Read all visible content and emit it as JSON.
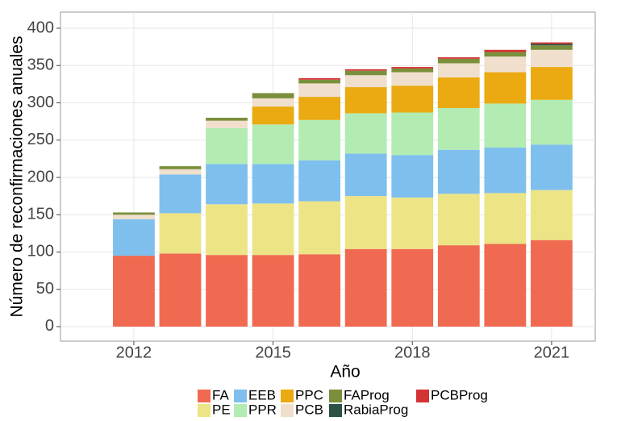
{
  "chart_data": {
    "type": "bar",
    "stacked": true,
    "x_label": "Año",
    "y_label": "Número de reconfirmaciones anuales",
    "x": [
      2012,
      2013,
      2014,
      2015,
      2016,
      2017,
      2018,
      2019,
      2020,
      2021
    ],
    "xlim": [
      2010.42,
      2021.94
    ],
    "xticks": [
      2012,
      2015,
      2018,
      2021
    ],
    "ylim": [
      -19.5,
      421.6
    ],
    "yticks": [
      0,
      50,
      100,
      150,
      200,
      250,
      300,
      350,
      400
    ],
    "grid": true,
    "legend": "bottom",
    "series": [
      {
        "name": "FA",
        "color": "#ef6a50",
        "values": [
          95,
          98,
          96,
          96,
          97,
          104,
          104,
          109,
          111,
          116
        ]
      },
      {
        "name": "PE",
        "color": "#ede485",
        "values": [
          0,
          54,
          68,
          69,
          71,
          71,
          69,
          69,
          68,
          67
        ]
      },
      {
        "name": "EEB",
        "color": "#7fbfee",
        "values": [
          49,
          52,
          54,
          53,
          55,
          57,
          57,
          59,
          61,
          61
        ]
      },
      {
        "name": "PPR",
        "color": "#b2ecb3",
        "values": [
          0,
          0,
          48,
          53,
          54,
          54,
          57,
          56,
          59,
          60
        ]
      },
      {
        "name": "PPC",
        "color": "#ebaa12",
        "values": [
          0,
          0,
          0,
          24,
          31,
          35,
          36,
          41,
          42,
          44
        ]
      },
      {
        "name": "PCB",
        "color": "#f0dfcc",
        "values": [
          6,
          7,
          10,
          11,
          18,
          16,
          18,
          19,
          21,
          23
        ]
      },
      {
        "name": "FAProg",
        "color": "#7a8f3c",
        "values": [
          3,
          4,
          4,
          7,
          5,
          6,
          5,
          6,
          6,
          6
        ]
      },
      {
        "name": "RabiaProg",
        "color": "#2d5145",
        "values": [
          0,
          0,
          0,
          0,
          0,
          0,
          0,
          0,
          0,
          2
        ]
      },
      {
        "name": "PCBProg",
        "color": "#d43333",
        "values": [
          0,
          0,
          0,
          0,
          2,
          2,
          2,
          2,
          3,
          2
        ]
      }
    ]
  }
}
